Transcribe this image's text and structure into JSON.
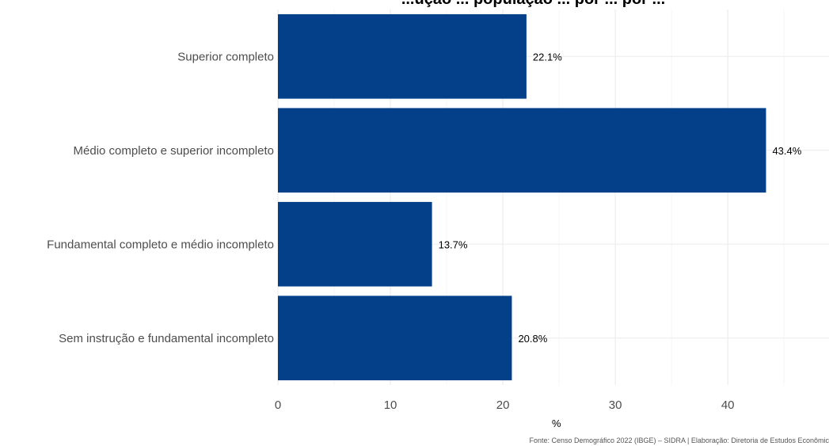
{
  "chart_data": {
    "type": "bar",
    "orientation": "horizontal",
    "title": "...ução ... população ... por ... por ...",
    "categories": [
      "Superior completo",
      "Médio completo e superior incompleto",
      "Fundamental completo e médio incompleto",
      "Sem instrução e fundamental incompleto"
    ],
    "values": [
      22.1,
      43.4,
      13.7,
      20.8
    ],
    "value_labels": [
      "22.1%",
      "43.4%",
      "13.7%",
      "20.8%"
    ],
    "xlabel": "%",
    "ylabel": "",
    "xlim": [
      0,
      49
    ],
    "xticks": [
      0,
      10,
      20,
      30,
      40
    ],
    "grid": true,
    "legend": "none",
    "bar_color": "#043f8a",
    "caption": "Fonte: Censo Demográfico 2022 (IBGE) – SIDRA | Elaboração: Diretoria de Estudos Econômic"
  }
}
